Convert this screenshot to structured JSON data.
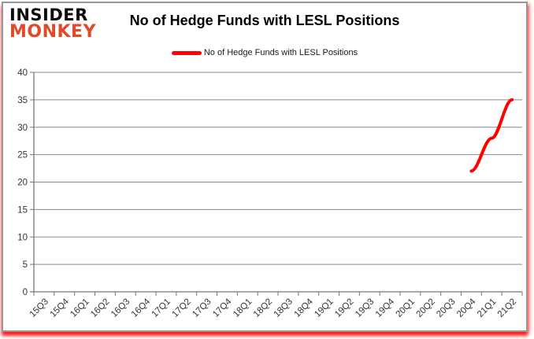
{
  "logo": {
    "line1": "INSIDER",
    "line2": "MONKEY",
    "line2_color": "#e04a2b"
  },
  "header": {
    "title": "No of Hedge Funds with LESL Positions"
  },
  "legend": {
    "label": "No of Hedge Funds with LESL Positions"
  },
  "colors": {
    "series_red": "#ff0000",
    "gridline": "#898989",
    "axis": "#767676",
    "tick_text": "#333333"
  },
  "chart_data": {
    "type": "line",
    "title": "No of Hedge Funds with LESL Positions",
    "xlabel": "",
    "ylabel": "",
    "ylim": [
      0,
      40
    ],
    "ytick_step": 5,
    "grid": "horizontal",
    "legend_position": "top-center",
    "categories": [
      "15Q3",
      "15Q4",
      "16Q1",
      "16Q2",
      "16Q3",
      "16Q4",
      "17Q1",
      "17Q2",
      "17Q3",
      "17Q4",
      "18Q1",
      "18Q2",
      "18Q3",
      "18Q4",
      "19Q1",
      "19Q2",
      "19Q3",
      "19Q4",
      "20Q1",
      "20Q2",
      "20Q3",
      "20Q4",
      "21Q1",
      "21Q2"
    ],
    "series": [
      {
        "name": "No of Hedge Funds with LESL Positions",
        "color": "#ff0000",
        "values": [
          null,
          null,
          null,
          null,
          null,
          null,
          null,
          null,
          null,
          null,
          null,
          null,
          null,
          null,
          null,
          null,
          null,
          null,
          null,
          null,
          null,
          22,
          28,
          35
        ]
      }
    ]
  }
}
